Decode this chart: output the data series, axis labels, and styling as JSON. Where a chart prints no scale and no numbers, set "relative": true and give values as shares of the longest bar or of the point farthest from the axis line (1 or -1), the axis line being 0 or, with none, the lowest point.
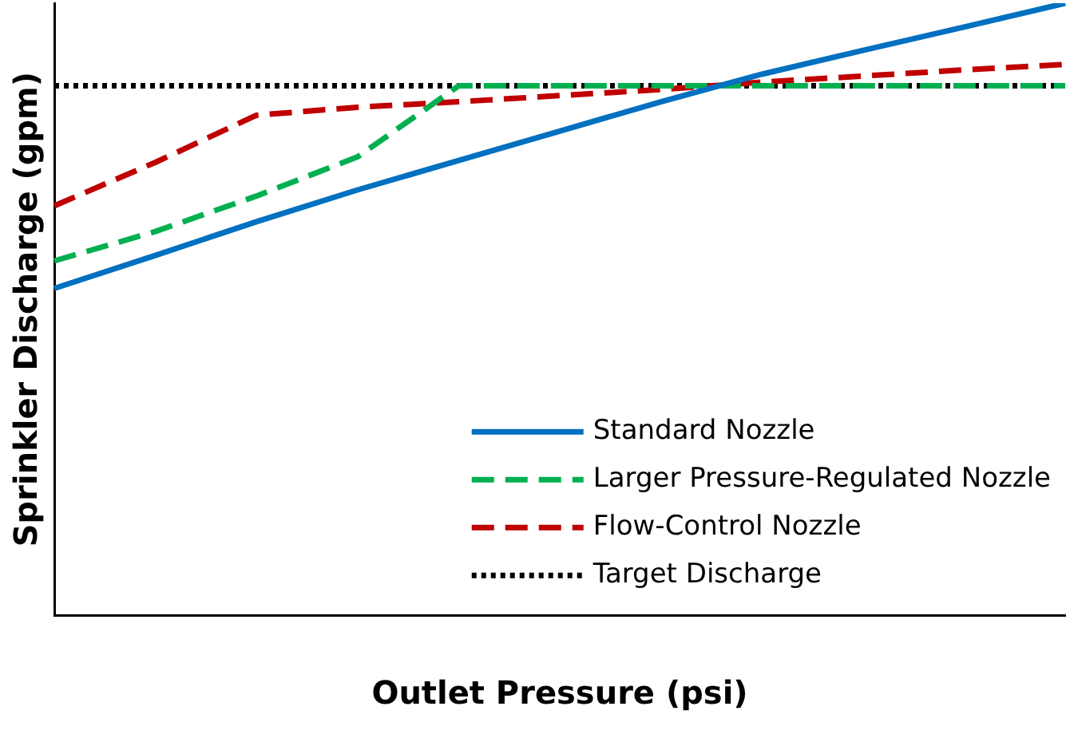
{
  "chart_data": {
    "type": "line",
    "relative": true,
    "xlabel": "Outlet Pressure (psi)",
    "ylabel": "Sprinkler Discharge (gpm)",
    "categories": [
      null,
      null,
      null,
      null,
      null,
      null,
      null,
      null,
      null,
      null,
      null
    ],
    "grid": false,
    "legend": "bottom right",
    "marker": "none",
    "series": [
      {
        "name": "Standard Nozzle",
        "color": "#0070c0",
        "line_style": "solid",
        "values": [
          0.534,
          0.588,
          0.643,
          0.695,
          0.743,
          0.791,
          0.839,
          0.884,
          0.923,
          0.961,
          1
        ]
      },
      {
        "name": "Larger Pressure-Regulated Nozzle",
        "color": "#00b050",
        "line_style": "dashed",
        "values": [
          0.579,
          0.627,
          0.685,
          0.749,
          0.865,
          0.865,
          0.865,
          0.865,
          0.865,
          0.865,
          0.865
        ]
      },
      {
        "name": "Flow-Control Nozzle",
        "color": "#c00000",
        "line_style": "dashed",
        "values": [
          0.669,
          0.74,
          0.817,
          0.83,
          0.839,
          0.849,
          0.859,
          0.871,
          0.881,
          0.891,
          0.9
        ]
      },
      {
        "name": "Target Discharge",
        "color": "#000000",
        "line_style": "dotted",
        "values": [
          0.865,
          0.865,
          0.865,
          0.865,
          0.865,
          0.865,
          0.865,
          0.865,
          0.865,
          0.865,
          0.865
        ]
      }
    ]
  }
}
